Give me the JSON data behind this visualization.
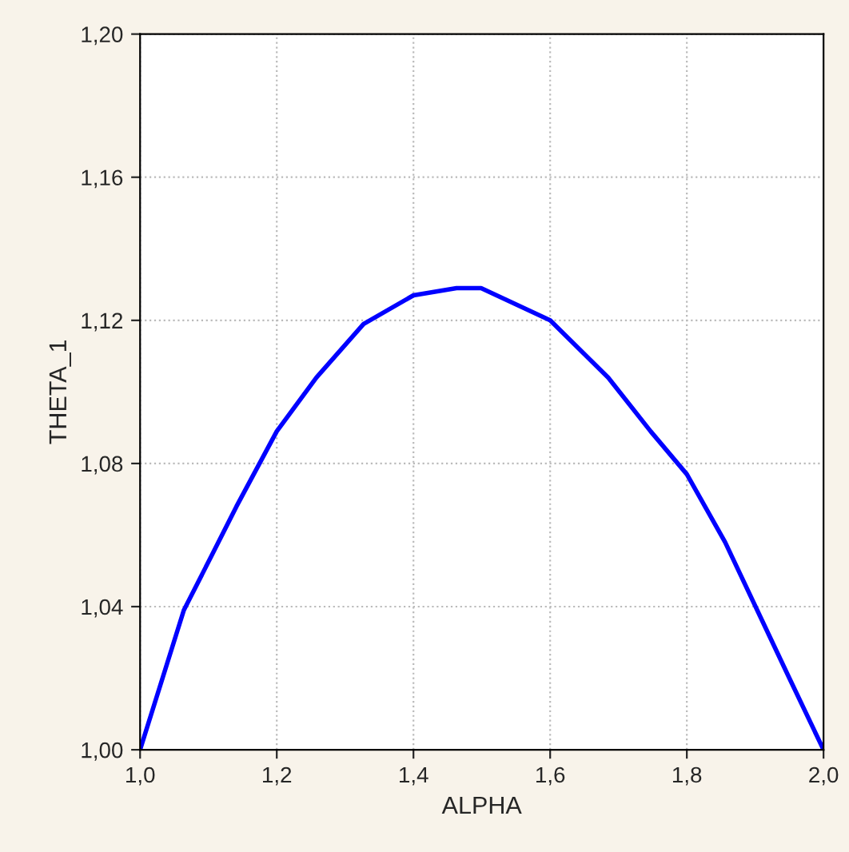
{
  "chart_data": {
    "type": "line",
    "xlabel": "ALPHA",
    "ylabel": "THETA_1",
    "x": [
      1.0,
      1.064,
      1.104,
      1.141,
      1.2,
      1.258,
      1.327,
      1.4,
      1.463,
      1.499,
      1.6,
      1.685,
      1.747,
      1.8,
      1.856,
      1.903,
      1.95,
      2.0
    ],
    "series": [
      {
        "color": "#0000ff",
        "values": [
          1.0,
          1.039,
          1.054,
          1.068,
          1.089,
          1.104,
          1.119,
          1.127,
          1.129,
          1.129,
          1.12,
          1.104,
          1.089,
          1.077,
          1.058,
          1.039,
          1.02,
          1.0
        ]
      }
    ],
    "xlim": [
      1.0,
      2.0
    ],
    "ylim": [
      1.0,
      1.2
    ],
    "xticks": [
      {
        "value": 1.0,
        "label": "1,0"
      },
      {
        "value": 1.2,
        "label": "1,2"
      },
      {
        "value": 1.4,
        "label": "1,4"
      },
      {
        "value": 1.6,
        "label": "1,6"
      },
      {
        "value": 1.8,
        "label": "1,8"
      },
      {
        "value": 2.0,
        "label": "2,0"
      }
    ],
    "yticks": [
      {
        "value": 1.0,
        "label": "1,00"
      },
      {
        "value": 1.04,
        "label": "1,04"
      },
      {
        "value": 1.08,
        "label": "1,08"
      },
      {
        "value": 1.12,
        "label": "1,12"
      },
      {
        "value": 1.16,
        "label": "1,16"
      },
      {
        "value": 1.2,
        "label": "1,20"
      }
    ],
    "grid": true,
    "marker": "none",
    "line_style": "solid"
  }
}
